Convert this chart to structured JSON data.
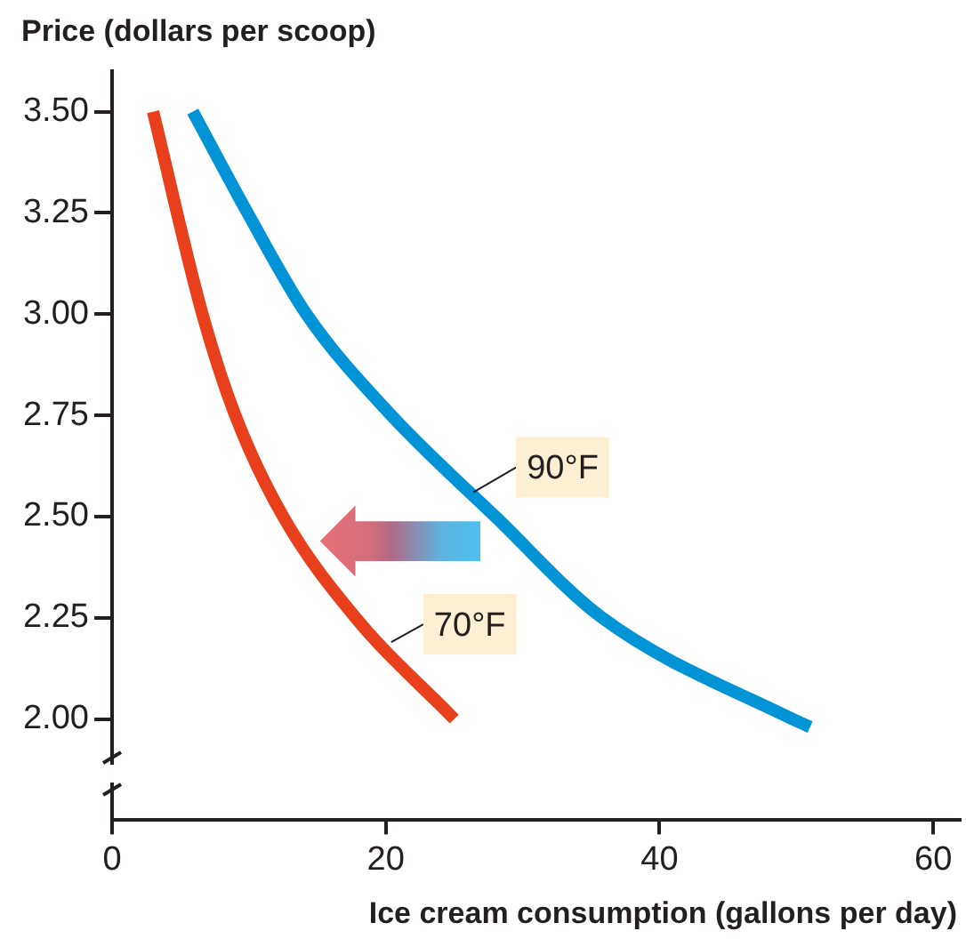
{
  "chart_data": {
    "type": "line",
    "ylabel": "Price (dollars per scoop)",
    "xlabel": "Ice cream consumption (gallons per day)",
    "xlim": [
      0,
      62
    ],
    "xticks": [
      0,
      20,
      40,
      60
    ],
    "ylim": [
      1.75,
      3.6
    ],
    "yticks": [
      {
        "value": 2,
        "label": "2.00"
      },
      {
        "value": 2.25,
        "label": "2.25"
      },
      {
        "value": 2.5,
        "label": "2.50"
      },
      {
        "value": 2.75,
        "label": "2.75"
      },
      {
        "value": 3,
        "label": "3.00"
      },
      {
        "value": 3.25,
        "label": "3.25"
      },
      {
        "value": 3.5,
        "label": "3.50"
      }
    ],
    "grid": false,
    "legend": false,
    "marker": "none",
    "line_style": "solid",
    "series": [
      {
        "color": "#e8401c",
        "x": [
          3.0,
          6.6,
          9.0,
          12.5,
          17.8,
          25.0
        ],
        "values": [
          3.5,
          3.0,
          2.75,
          2.5,
          2.25,
          2.0
        ]
      },
      {
        "color": "#0093d6",
        "x": [
          5.9,
          9.9,
          14.2,
          20.4,
          28.0,
          35.8,
          49.7,
          51.0
        ],
        "values": [
          3.5,
          3.25,
          3.0,
          2.75,
          2.5,
          2.25,
          2.0,
          1.98
        ]
      }
    ],
    "annotations": [
      {
        "text": "90°F",
        "x": 26.4,
        "y": 2.56
      },
      {
        "text": "70°F",
        "x": 20.4,
        "y": 2.19
      }
    ]
  }
}
